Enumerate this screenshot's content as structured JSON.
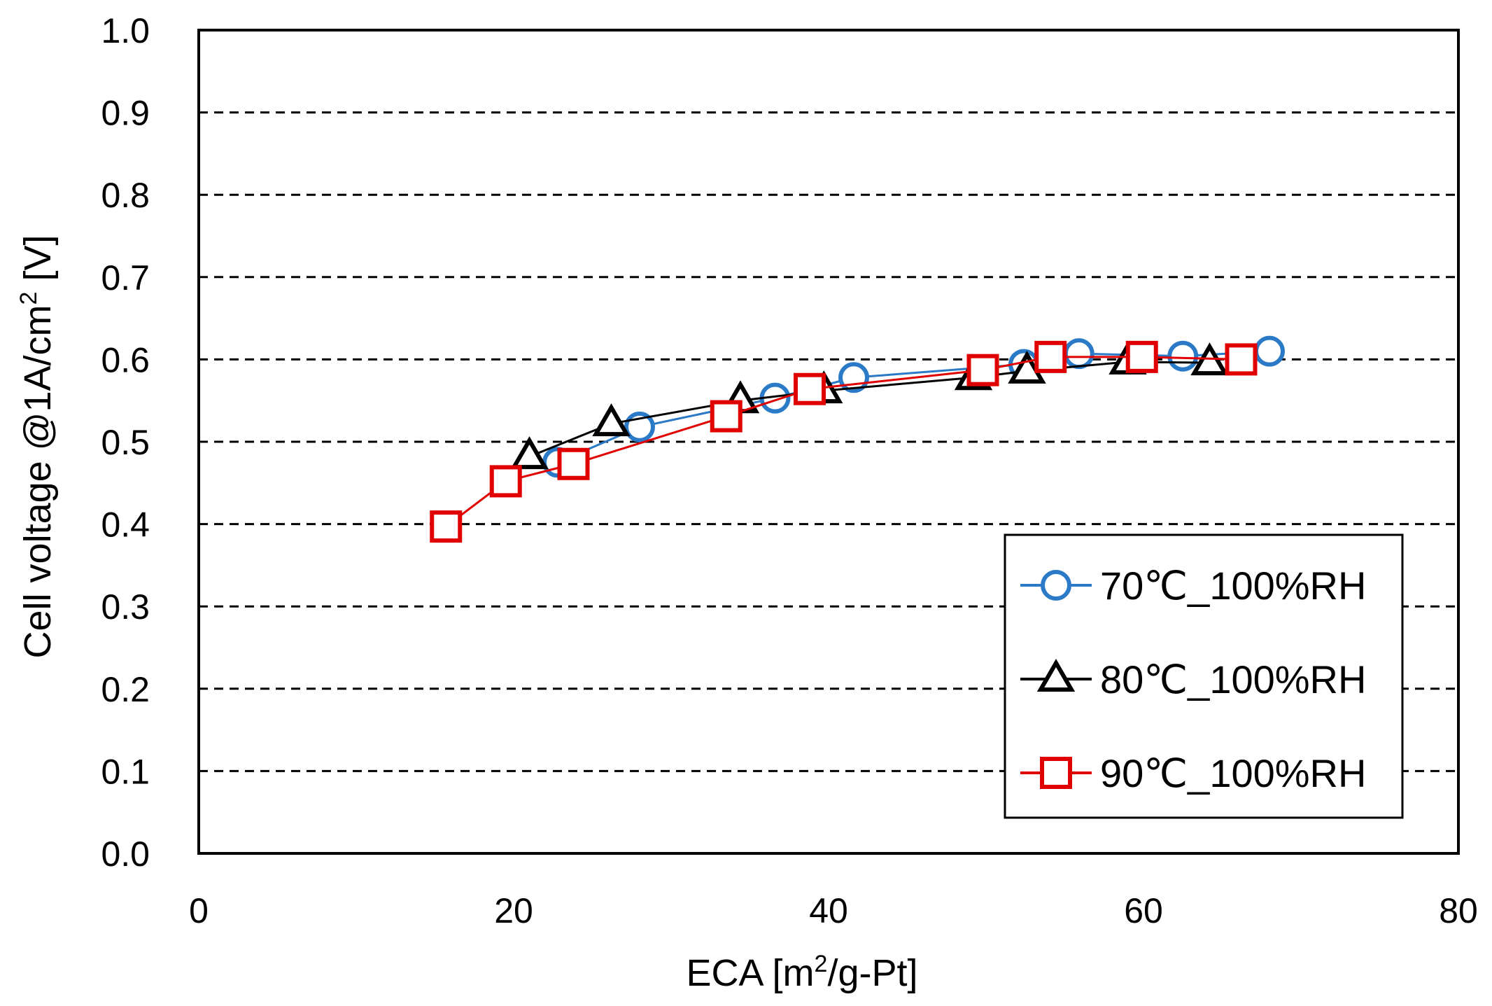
{
  "chart_data": {
    "type": "line",
    "title": "",
    "xlabel": {
      "prefix": "ECA [m",
      "sup": "2",
      "suffix": "/g-Pt]"
    },
    "ylabel": {
      "prefix": "Cell voltage @1A/cm",
      "sup": "2",
      "suffix": " [V]"
    },
    "xlim": [
      0,
      80
    ],
    "ylim": [
      0.0,
      1.0
    ],
    "xticks": [
      0,
      20,
      40,
      60,
      80
    ],
    "yticks": [
      0.0,
      0.1,
      0.2,
      0.3,
      0.4,
      0.5,
      0.6,
      0.7,
      0.8,
      0.9,
      1.0
    ],
    "ytick_labels": [
      "0.0",
      "0.1",
      "0.2",
      "0.3",
      "0.4",
      "0.5",
      "0.6",
      "0.7",
      "0.8",
      "0.9",
      "1.0"
    ],
    "xtick_labels": [
      "0",
      "20",
      "40",
      "60",
      "80"
    ],
    "grid": "horizontal dashed",
    "legend_position": "bottom-right",
    "series": [
      {
        "name": "70℃_100%RH",
        "marker": "circle",
        "color": "#2a7ac8",
        "x": [
          22.8,
          28.0,
          36.6,
          41.6,
          52.4,
          55.9,
          62.5,
          68.0
        ],
        "y": [
          0.475,
          0.518,
          0.553,
          0.578,
          0.594,
          0.607,
          0.604,
          0.61
        ]
      },
      {
        "name": "80℃_100%RH",
        "marker": "triangle",
        "color": "#000000",
        "x": [
          21.0,
          26.2,
          34.4,
          39.7,
          49.2,
          52.6,
          59.0,
          64.2
        ],
        "y": [
          0.482,
          0.522,
          0.55,
          0.562,
          0.578,
          0.586,
          0.597,
          0.596
        ]
      },
      {
        "name": "90℃_100%RH",
        "marker": "square",
        "color": "#e00000",
        "x": [
          15.7,
          19.5,
          23.8,
          33.5,
          38.8,
          49.8,
          54.1,
          59.9,
          66.2
        ],
        "y": [
          0.397,
          0.452,
          0.473,
          0.531,
          0.564,
          0.587,
          0.603,
          0.603,
          0.6
        ]
      }
    ]
  }
}
